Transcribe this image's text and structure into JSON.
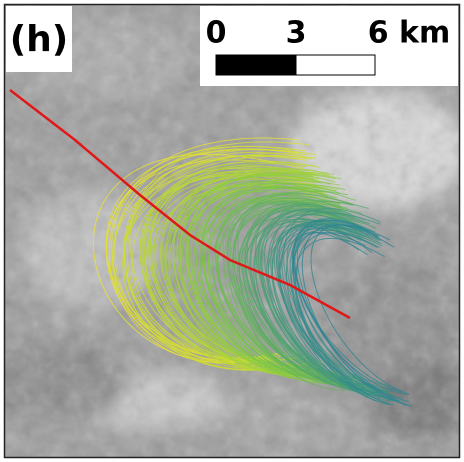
{
  "panel_label": "(h)",
  "scale_bar": {
    "labels": [
      "0",
      "3",
      "6 km"
    ]
  }
}
